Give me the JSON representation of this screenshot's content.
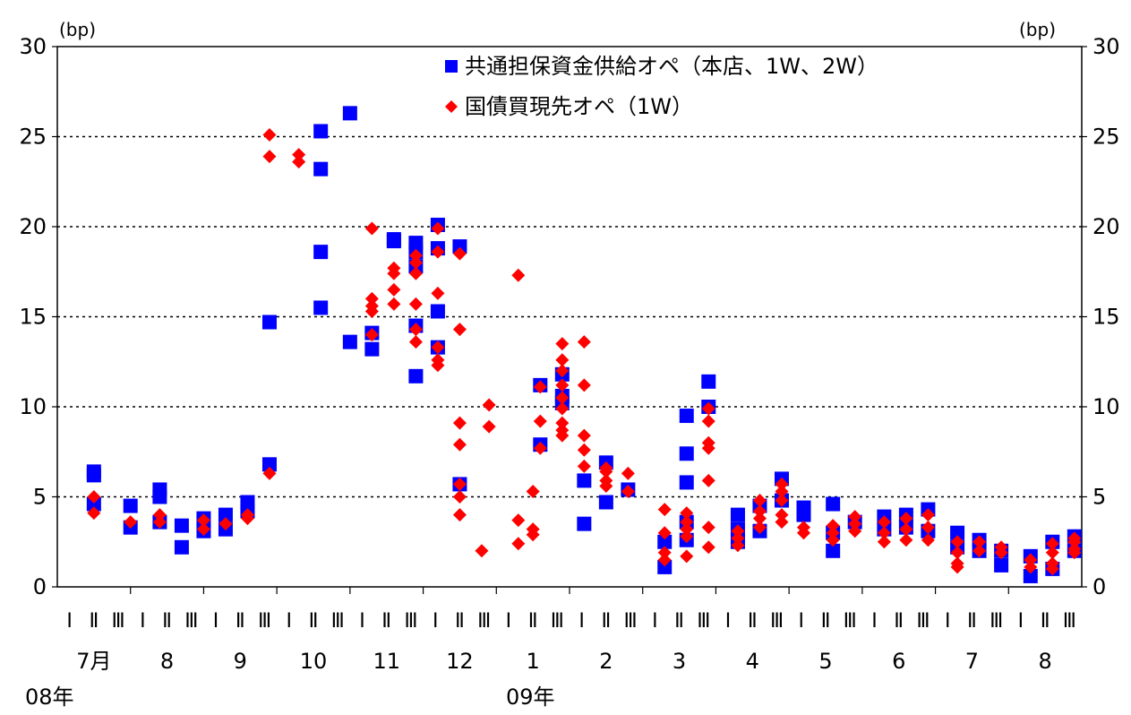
{
  "chart_data": {
    "type": "scatter",
    "unit_left": "(bp)",
    "unit_right": "(bp)",
    "ylim": [
      0,
      30
    ],
    "yticks": [
      "0",
      "5",
      "10",
      "15",
      "20",
      "25",
      "30"
    ],
    "grid": "horizontal dotted at 5,10,15,20,25",
    "legend_position": "top-center",
    "x_period_labels": [
      "Ⅰ",
      "Ⅱ",
      "Ⅲ"
    ],
    "months": [
      "7月",
      "8",
      "9",
      "10",
      "11",
      "12",
      "1",
      "2",
      "3",
      "4",
      "5",
      "6",
      "7",
      "8"
    ],
    "years": [
      "08年",
      "09年"
    ],
    "series": [
      {
        "name": "共通担保資金供給オペ（本店、1W、2W）",
        "marker": "square",
        "color": "#0000ff",
        "points": [
          [
            0.0,
            6.4
          ],
          [
            0.0,
            6.2
          ],
          [
            0.0,
            4.6
          ],
          [
            0.5,
            4.5
          ],
          [
            0.5,
            3.3
          ],
          [
            0.9,
            5.4
          ],
          [
            0.9,
            5.0
          ],
          [
            0.9,
            3.6
          ],
          [
            1.2,
            3.4
          ],
          [
            1.2,
            2.2
          ],
          [
            1.5,
            3.8
          ],
          [
            1.5,
            3.1
          ],
          [
            1.8,
            4.0
          ],
          [
            1.8,
            3.2
          ],
          [
            2.1,
            4.7
          ],
          [
            2.1,
            4.2
          ],
          [
            2.4,
            14.7
          ],
          [
            2.4,
            6.8
          ],
          [
            3.1,
            25.3
          ],
          [
            3.1,
            23.2
          ],
          [
            3.1,
            18.6
          ],
          [
            3.1,
            15.5
          ],
          [
            3.5,
            26.3
          ],
          [
            3.5,
            13.6
          ],
          [
            3.8,
            14.1
          ],
          [
            3.8,
            13.2
          ],
          [
            4.1,
            19.3
          ],
          [
            4.1,
            19.2
          ],
          [
            4.4,
            19.1
          ],
          [
            4.4,
            18.6
          ],
          [
            4.4,
            17.8
          ],
          [
            4.4,
            14.5
          ],
          [
            4.4,
            11.7
          ],
          [
            4.7,
            20.1
          ],
          [
            4.7,
            18.8
          ],
          [
            4.7,
            15.3
          ],
          [
            4.7,
            13.3
          ],
          [
            5.0,
            18.9
          ],
          [
            5.0,
            5.7
          ],
          [
            6.1,
            11.2
          ],
          [
            6.1,
            7.9
          ],
          [
            6.4,
            11.8
          ],
          [
            6.4,
            10.6
          ],
          [
            6.4,
            10.2
          ],
          [
            6.7,
            5.9
          ],
          [
            6.7,
            3.5
          ],
          [
            7.0,
            6.9
          ],
          [
            7.0,
            4.7
          ],
          [
            7.3,
            5.4
          ],
          [
            7.8,
            2.5
          ],
          [
            7.8,
            1.1
          ],
          [
            8.1,
            9.5
          ],
          [
            8.1,
            7.4
          ],
          [
            8.1,
            5.8
          ],
          [
            8.1,
            3.6
          ],
          [
            8.1,
            2.6
          ],
          [
            8.4,
            11.4
          ],
          [
            8.4,
            10.0
          ],
          [
            8.8,
            4.0
          ],
          [
            8.8,
            3.2
          ],
          [
            8.8,
            2.5
          ],
          [
            9.1,
            4.5
          ],
          [
            9.1,
            3.1
          ],
          [
            9.4,
            6.0
          ],
          [
            9.4,
            4.8
          ],
          [
            9.7,
            4.4
          ],
          [
            9.7,
            4.0
          ],
          [
            10.1,
            4.6
          ],
          [
            10.1,
            3.0
          ],
          [
            10.1,
            2.0
          ],
          [
            10.4,
            3.6
          ],
          [
            10.8,
            3.9
          ],
          [
            10.8,
            3.2
          ],
          [
            11.1,
            4.0
          ],
          [
            11.1,
            3.3
          ],
          [
            11.4,
            4.3
          ],
          [
            11.4,
            3.1
          ],
          [
            11.8,
            3.0
          ],
          [
            11.8,
            2.2
          ],
          [
            12.1,
            2.6
          ],
          [
            12.1,
            2.0
          ],
          [
            12.4,
            2.0
          ],
          [
            12.4,
            1.2
          ],
          [
            12.8,
            1.7
          ],
          [
            12.8,
            0.6
          ],
          [
            13.1,
            2.5
          ],
          [
            13.1,
            1.0
          ],
          [
            13.4,
            2.8
          ],
          [
            13.4,
            2.0
          ]
        ]
      },
      {
        "name": "国債買現先オペ（1W）",
        "marker": "diamond",
        "color": "#ff0000",
        "points": [
          [
            0.0,
            5.0
          ],
          [
            0.0,
            4.1
          ],
          [
            0.5,
            3.6
          ],
          [
            0.9,
            4.0
          ],
          [
            0.9,
            3.6
          ],
          [
            1.5,
            3.7
          ],
          [
            1.5,
            3.2
          ],
          [
            1.8,
            3.5
          ],
          [
            2.1,
            4.0
          ],
          [
            2.1,
            3.8
          ],
          [
            2.4,
            25.1
          ],
          [
            2.4,
            23.9
          ],
          [
            2.4,
            6.3
          ],
          [
            2.8,
            24.0
          ],
          [
            2.8,
            23.6
          ],
          [
            3.8,
            19.9
          ],
          [
            3.8,
            16.0
          ],
          [
            3.8,
            15.6
          ],
          [
            3.8,
            15.3
          ],
          [
            3.8,
            14.0
          ],
          [
            4.1,
            17.7
          ],
          [
            4.1,
            17.4
          ],
          [
            4.1,
            16.5
          ],
          [
            4.1,
            15.7
          ],
          [
            4.4,
            18.4
          ],
          [
            4.4,
            18.0
          ],
          [
            4.4,
            17.4
          ],
          [
            4.4,
            15.7
          ],
          [
            4.4,
            14.3
          ],
          [
            4.4,
            13.6
          ],
          [
            4.7,
            19.9
          ],
          [
            4.7,
            18.6
          ],
          [
            4.7,
            16.3
          ],
          [
            4.7,
            13.3
          ],
          [
            4.7,
            12.6
          ],
          [
            4.7,
            12.3
          ],
          [
            5.0,
            18.5
          ],
          [
            5.0,
            14.3
          ],
          [
            5.0,
            9.1
          ],
          [
            5.0,
            7.9
          ],
          [
            5.0,
            5.7
          ],
          [
            5.0,
            5.0
          ],
          [
            5.0,
            4.0
          ],
          [
            5.3,
            2.0
          ],
          [
            5.4,
            10.1
          ],
          [
            5.4,
            8.9
          ],
          [
            5.8,
            17.3
          ],
          [
            5.8,
            3.7
          ],
          [
            5.8,
            2.4
          ],
          [
            6.0,
            5.3
          ],
          [
            6.0,
            3.2
          ],
          [
            6.0,
            2.9
          ],
          [
            6.1,
            11.1
          ],
          [
            6.1,
            9.2
          ],
          [
            6.1,
            7.7
          ],
          [
            6.4,
            13.5
          ],
          [
            6.4,
            12.6
          ],
          [
            6.4,
            12.0
          ],
          [
            6.4,
            11.2
          ],
          [
            6.4,
            10.5
          ],
          [
            6.4,
            9.9
          ],
          [
            6.4,
            9.1
          ],
          [
            6.4,
            8.7
          ],
          [
            6.4,
            8.4
          ],
          [
            6.7,
            13.6
          ],
          [
            6.7,
            11.2
          ],
          [
            6.7,
            8.4
          ],
          [
            6.7,
            7.6
          ],
          [
            6.7,
            6.7
          ],
          [
            7.0,
            6.6
          ],
          [
            7.0,
            6.4
          ],
          [
            7.0,
            5.9
          ],
          [
            7.0,
            5.6
          ],
          [
            7.3,
            6.3
          ],
          [
            7.3,
            5.3
          ],
          [
            7.8,
            4.3
          ],
          [
            7.8,
            3.0
          ],
          [
            7.8,
            1.9
          ],
          [
            7.8,
            1.5
          ],
          [
            8.1,
            4.1
          ],
          [
            8.1,
            3.6
          ],
          [
            8.1,
            3.2
          ],
          [
            8.1,
            2.8
          ],
          [
            8.1,
            1.7
          ],
          [
            8.4,
            9.9
          ],
          [
            8.4,
            9.2
          ],
          [
            8.4,
            8.0
          ],
          [
            8.4,
            7.7
          ],
          [
            8.4,
            5.9
          ],
          [
            8.4,
            3.3
          ],
          [
            8.4,
            2.2
          ],
          [
            8.8,
            3.1
          ],
          [
            8.8,
            2.7
          ],
          [
            8.8,
            2.3
          ],
          [
            9.1,
            4.8
          ],
          [
            9.1,
            4.2
          ],
          [
            9.1,
            3.8
          ],
          [
            9.1,
            3.3
          ],
          [
            9.4,
            5.7
          ],
          [
            9.4,
            5.3
          ],
          [
            9.4,
            4.8
          ],
          [
            9.4,
            4.0
          ],
          [
            9.4,
            3.6
          ],
          [
            9.7,
            3.3
          ],
          [
            9.7,
            3.0
          ],
          [
            10.1,
            3.4
          ],
          [
            10.1,
            3.0
          ],
          [
            10.1,
            2.6
          ],
          [
            10.4,
            3.9
          ],
          [
            10.4,
            3.5
          ],
          [
            10.4,
            3.1
          ],
          [
            10.8,
            3.6
          ],
          [
            10.8,
            3.0
          ],
          [
            10.8,
            2.5
          ],
          [
            11.1,
            3.8
          ],
          [
            11.1,
            3.2
          ],
          [
            11.1,
            2.6
          ],
          [
            11.4,
            4.0
          ],
          [
            11.4,
            3.3
          ],
          [
            11.4,
            2.6
          ],
          [
            11.8,
            2.5
          ],
          [
            11.8,
            1.9
          ],
          [
            11.8,
            1.3
          ],
          [
            11.8,
            1.1
          ],
          [
            12.1,
            2.5
          ],
          [
            12.1,
            2.0
          ],
          [
            12.4,
            2.2
          ],
          [
            12.4,
            1.9
          ],
          [
            12.8,
            1.5
          ],
          [
            12.8,
            1.1
          ],
          [
            13.1,
            2.4
          ],
          [
            13.1,
            1.9
          ],
          [
            13.1,
            1.3
          ],
          [
            13.1,
            1.0
          ],
          [
            13.4,
            2.7
          ],
          [
            13.4,
            2.5
          ],
          [
            13.4,
            2.1
          ],
          [
            13.4,
            1.9
          ]
        ]
      }
    ]
  }
}
